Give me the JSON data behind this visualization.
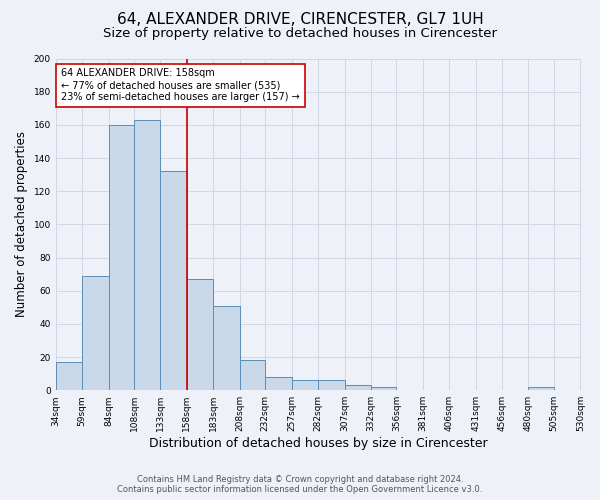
{
  "title": "64, ALEXANDER DRIVE, CIRENCESTER, GL7 1UH",
  "subtitle": "Size of property relative to detached houses in Cirencester",
  "xlabel": "Distribution of detached houses by size in Cirencester",
  "ylabel": "Number of detached properties",
  "bins": [
    34,
    59,
    84,
    108,
    133,
    158,
    183,
    208,
    232,
    257,
    282,
    307,
    332,
    356,
    381,
    406,
    431,
    456,
    480,
    505,
    530
  ],
  "counts": [
    17,
    69,
    160,
    163,
    132,
    67,
    51,
    18,
    8,
    6,
    6,
    3,
    2,
    0,
    0,
    0,
    0,
    0,
    2,
    0
  ],
  "bar_facecolor": "#c9d9ea",
  "bar_edgecolor": "#5b8db8",
  "grid_color": "#d0d8e8",
  "bg_color": "#eef2f8",
  "property_value": 158,
  "vline_color": "#cc0000",
  "annotation_line1": "64 ALEXANDER DRIVE: 158sqm",
  "annotation_line2": "← 77% of detached houses are smaller (535)",
  "annotation_line3": "23% of semi-detached houses are larger (157) →",
  "annotation_box_color": "#ffffff",
  "annotation_box_edge": "#cc0000",
  "footer_line1": "Contains HM Land Registry data © Crown copyright and database right 2024.",
  "footer_line2": "Contains public sector information licensed under the Open Government Licence v3.0.",
  "ylim": [
    0,
    200
  ],
  "title_fontsize": 11,
  "subtitle_fontsize": 9.5,
  "xlabel_fontsize": 9,
  "ylabel_fontsize": 8.5,
  "tick_fontsize": 6.5,
  "annotation_fontsize": 7,
  "footer_fontsize": 6,
  "tick_labels": [
    "34sqm",
    "59sqm",
    "84sqm",
    "108sqm",
    "133sqm",
    "158sqm",
    "183sqm",
    "208sqm",
    "232sqm",
    "257sqm",
    "282sqm",
    "307sqm",
    "332sqm",
    "356sqm",
    "381sqm",
    "406sqm",
    "431sqm",
    "456sqm",
    "480sqm",
    "505sqm",
    "530sqm"
  ]
}
